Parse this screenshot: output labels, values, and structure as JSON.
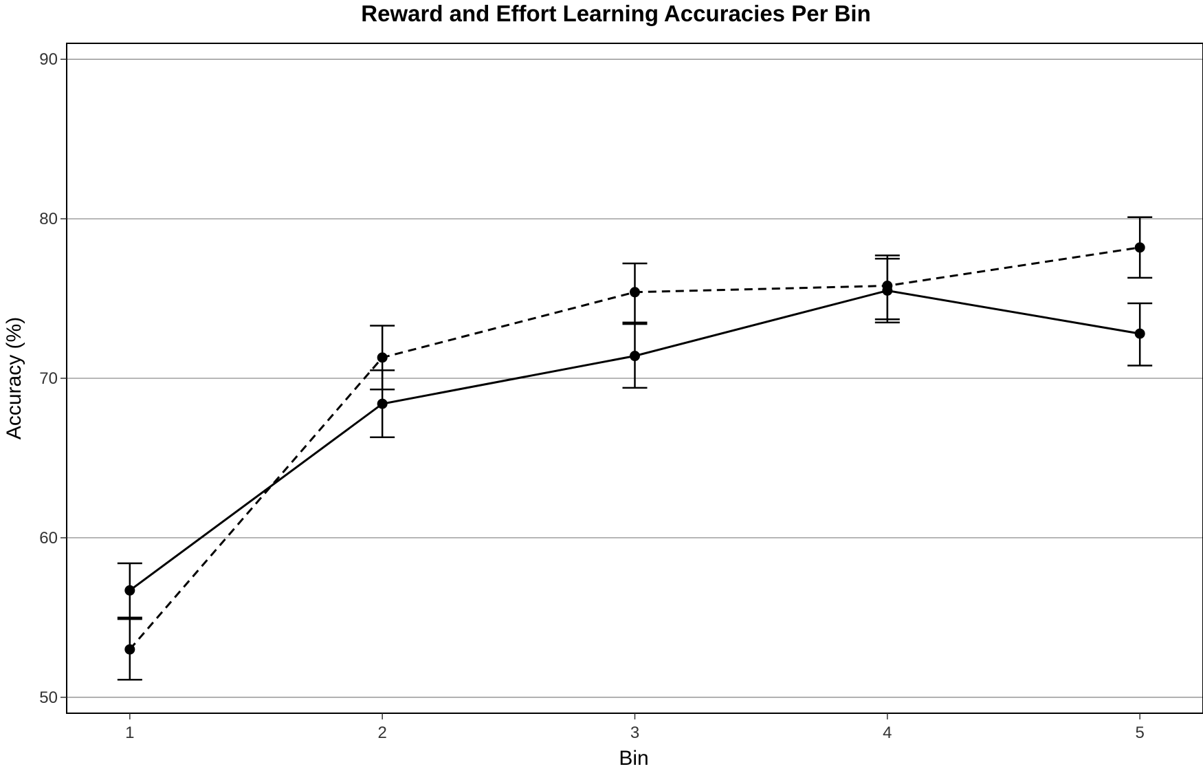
{
  "chart_data": {
    "type": "line",
    "title": "Reward and Effort Learning Accuracies Per Bin",
    "xlabel": "Bin",
    "ylabel": "Accuracy (%)",
    "x": [
      1,
      2,
      3,
      4,
      5
    ],
    "x_tick_labels": [
      "1",
      "2",
      "3",
      "4",
      "5"
    ],
    "xlim": [
      0.75,
      5.25
    ],
    "ylim": [
      49,
      91
    ],
    "y_ticks": [
      50,
      60,
      70,
      80,
      90
    ],
    "y_tick_labels": [
      "50",
      "60",
      "70",
      "80",
      "90"
    ],
    "grid": "horizontal major",
    "series": [
      {
        "name": "solid line series",
        "line_style": "solid",
        "values": [
          56.7,
          68.4,
          71.4,
          75.5,
          72.8
        ],
        "error_low": [
          54.9,
          66.3,
          69.4,
          73.5,
          70.8
        ],
        "error_high": [
          58.4,
          70.5,
          73.4,
          77.5,
          74.7
        ]
      },
      {
        "name": "dashed line series",
        "line_style": "dashed",
        "values": [
          53.0,
          71.3,
          75.4,
          75.8,
          78.2
        ],
        "error_low": [
          51.1,
          69.3,
          73.5,
          73.7,
          76.3
        ],
        "error_high": [
          55.0,
          73.3,
          77.2,
          77.7,
          80.1
        ]
      }
    ],
    "colors": {
      "line": "#000000",
      "grid": "#8c8c8c",
      "panel_border": "#000000",
      "tick_text": "#333333"
    }
  }
}
